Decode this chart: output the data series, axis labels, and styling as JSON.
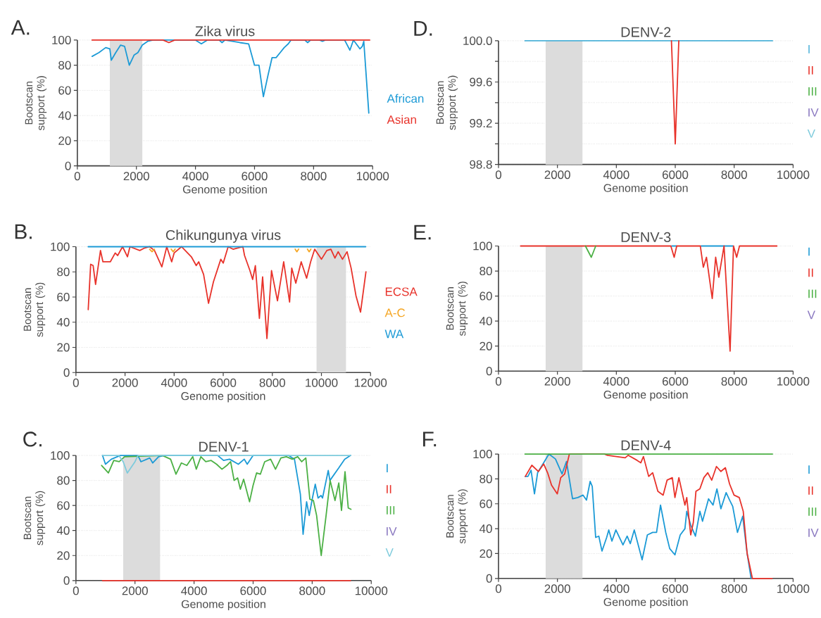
{
  "chart_data": [
    {
      "type": "line",
      "title": "Zika virus",
      "xlabel": "Genome position",
      "ylabel": "Bootscan support (%)",
      "annotations": [
        "A."
      ],
      "xlim": [
        0,
        10000
      ],
      "xticks": [
        0,
        2000,
        4000,
        6000,
        8000,
        10000
      ],
      "ylim": [
        0,
        100
      ],
      "yticks": [
        0,
        20,
        40,
        60,
        80,
        100
      ],
      "grid": "y",
      "legend": "right",
      "bands": [
        {
          "axis": "x",
          "from": 1100,
          "to": 2200,
          "color": "#dcdcdc"
        }
      ],
      "series": [
        {
          "name": "African",
          "color": "#1b9ad6",
          "x": [
            500,
            730,
            960,
            1100,
            1150,
            1300,
            1465,
            1600,
            1760,
            1920,
            2050,
            2200,
            2380,
            2560,
            4000,
            4200,
            4400,
            4800,
            4900,
            5000,
            5500,
            5800,
            6000,
            6150,
            6300,
            6456,
            6593,
            6730,
            6868,
            7005,
            7143,
            7234,
            7700,
            7800,
            7900,
            8200,
            8300,
            8400,
            9050,
            9230,
            9350,
            9570,
            9650,
            9700,
            9870
          ],
          "values": [
            87,
            90,
            94,
            93,
            84,
            90,
            96,
            95,
            80,
            88,
            90,
            96,
            99,
            100,
            100,
            97,
            100,
            100,
            98,
            100,
            98,
            97,
            80,
            80,
            55,
            72,
            86,
            86,
            90,
            94,
            97,
            100,
            100,
            98,
            100,
            100,
            99,
            100,
            100,
            92,
            100,
            93,
            95,
            99,
            42
          ]
        },
        {
          "name": "Asian",
          "color": "#e8322a",
          "x": [
            500,
            2900,
            3100,
            3300,
            9900
          ],
          "values": [
            100,
            100,
            98,
            100,
            100
          ]
        }
      ]
    },
    {
      "type": "line",
      "title": "Chikungunya virus",
      "xlabel": "Genome position",
      "ylabel": "Bootscan support (%)",
      "annotations": [
        "B."
      ],
      "xlim": [
        0,
        12000
      ],
      "xticks": [
        0,
        2000,
        4000,
        6000,
        8000,
        10000,
        12000
      ],
      "ylim": [
        0,
        100
      ],
      "yticks": [
        0,
        20,
        40,
        60,
        80,
        100
      ],
      "grid": "y",
      "legend": "right",
      "bands": [
        {
          "axis": "x",
          "from": 9800,
          "to": 11000,
          "color": "#dcdcdc"
        }
      ],
      "series": [
        {
          "name": "ECSA",
          "color": "#e8322a",
          "x": [
            500,
            600,
            700,
            800,
            1000,
            1100,
            1400,
            1600,
            1700,
            1900,
            2100,
            2200,
            2600,
            2800,
            3000,
            3200,
            3500,
            3700,
            3900,
            4000,
            4300,
            4700,
            4900,
            5000,
            5200,
            5400,
            5600,
            5900,
            6000,
            6200,
            6400,
            6800,
            6868,
            7088,
            7198,
            7308,
            7473,
            7604,
            7780,
            7967,
            8209,
            8462,
            8703,
            8791,
            8956,
            9176,
            9396,
            9560,
            9725,
            10000,
            10220,
            10385,
            10550,
            10681,
            10857,
            11044,
            11209,
            11407,
            11593,
            11813
          ],
          "values": [
            50,
            86,
            85,
            70,
            97,
            88,
            88,
            95,
            93,
            100,
            92,
            100,
            97,
            99,
            100,
            97,
            84,
            100,
            88,
            95,
            100,
            92,
            85,
            88,
            78,
            55,
            72,
            90,
            87,
            100,
            98,
            100,
            93,
            81,
            74,
            85,
            43,
            76,
            27,
            81,
            57,
            88,
            56,
            83,
            71,
            88,
            75,
            88,
            98,
            90,
            97,
            98,
            91,
            96,
            90,
            96,
            83,
            61,
            48,
            80
          ]
        },
        {
          "name": "A-C",
          "color": "#f5a623",
          "x": [
            3000,
            3100,
            3200,
            3300,
            3880,
            3960,
            4040,
            4100,
            8930,
            9000,
            9070,
            9100,
            9430,
            9500,
            9570
          ],
          "values": [
            98,
            96,
            98,
            null,
            98,
            96,
            98,
            null,
            98,
            96,
            98,
            null,
            98,
            96,
            98
          ]
        },
        {
          "name": "WA",
          "color": "#1b9ad6",
          "x": [
            500,
            11800
          ],
          "values": [
            100,
            100
          ]
        }
      ]
    },
    {
      "type": "line",
      "title": "DENV-1",
      "xlabel": "Genome position",
      "ylabel": "Bootscan support (%)",
      "annotations": [
        "C."
      ],
      "xlim": [
        0,
        10000
      ],
      "xticks": [
        0,
        2000,
        4000,
        6000,
        8000,
        10000
      ],
      "ylim": [
        0,
        100
      ],
      "yticks": [
        0,
        20,
        40,
        60,
        80,
        100
      ],
      "grid": "y",
      "legend": "right",
      "bands": [
        {
          "axis": "x",
          "from": 1600,
          "to": 2850,
          "color": "#dcdcdc"
        }
      ],
      "series": [
        {
          "name": "I",
          "color": "#1b9ad6",
          "x": [
            900,
            1000,
            1200,
            1500,
            2100,
            2200,
            2500,
            2600,
            2800,
            3000,
            4800,
            5000,
            5200,
            5500,
            5700,
            5800,
            6000,
            7200,
            7400,
            7600,
            7692,
            7811,
            7900,
            8000,
            8104,
            8200,
            8300,
            8350,
            8544,
            8600,
            8900,
            9100,
            9300
          ],
          "values": [
            100,
            93,
            97,
            100,
            100,
            95,
            98,
            94,
            99,
            100,
            100,
            96,
            97,
            93,
            97,
            93,
            100,
            100,
            97,
            69,
            37,
            63,
            52,
            65,
            77,
            66,
            68,
            66,
            88,
            80,
            90,
            97,
            100
          ]
        },
        {
          "name": "II",
          "color": "#e8322a",
          "x": [
            900,
            9300
          ],
          "values": [
            0,
            0
          ]
        },
        {
          "name": "III",
          "color": "#4bb044",
          "x": [
            870,
            1099,
            1282,
            1465,
            1648,
            2930,
            3205,
            3388,
            3571,
            3755,
            3956,
            4075,
            4231,
            4396,
            4579,
            4762,
            4945,
            5110,
            5238,
            5357,
            5476,
            5568,
            5678,
            5879,
            5998,
            6117,
            6245,
            6392,
            6593,
            6758,
            6941,
            7125,
            7326,
            7509,
            7646,
            7784,
            7921,
            8040,
            8150,
            8306,
            8471,
            8608,
            8773,
            8901,
            8993,
            9112,
            9222,
            9313
          ],
          "values": [
            92,
            86,
            96,
            95,
            99,
            100,
            97,
            85,
            94,
            92,
            99,
            89,
            99,
            95,
            96,
            93,
            89,
            92,
            95,
            80,
            82,
            73,
            81,
            63,
            76,
            86,
            85,
            95,
            97,
            89,
            98,
            99,
            97,
            99,
            95,
            98,
            65,
            64,
            52,
            20,
            52,
            80,
            64,
            78,
            56,
            87,
            58,
            57
          ]
        },
        {
          "name": "IV",
          "color": "#8a78c0",
          "values": [
            null
          ]
        },
        {
          "name": "V",
          "color": "#7ecbdc",
          "x": [
            900,
            1450,
            1600,
            1740,
            2000,
            2100,
            9300
          ],
          "values": [
            100,
            100,
            95,
            86,
            95,
            100,
            100
          ]
        }
      ]
    },
    {
      "type": "line",
      "title": "DENV-2",
      "xlabel": "Genome position",
      "ylabel": "Bootscan support (%)",
      "annotations": [
        "D."
      ],
      "xlim": [
        0,
        10000
      ],
      "xticks": [
        0,
        2000,
        4000,
        6000,
        8000,
        10000
      ],
      "ylim": [
        98.8,
        100
      ],
      "yticks": [
        98.8,
        {
          "value": 99.0,
          "label": null
        },
        99.2,
        {
          "value": 99.4,
          "label": null
        },
        99.6,
        {
          "value": 99.8,
          "label": null
        },
        {
          "value": 100,
          "label": "100.0"
        }
      ],
      "grid": "y",
      "legend": "right",
      "bands": [
        {
          "axis": "x",
          "from": 1600,
          "to": 2850,
          "color": "#dcdcdc"
        }
      ],
      "series": [
        {
          "name": "I",
          "color": "#4fb3d9",
          "x": [
            900,
            9300
          ],
          "values": [
            100,
            100
          ]
        },
        {
          "name": "II",
          "color": "#e8322a",
          "x": [
            5870,
            6000,
            6120
          ],
          "values": [
            100,
            99.0,
            100
          ]
        },
        {
          "name": "III",
          "color": "#4bb044",
          "values": [
            null
          ]
        },
        {
          "name": "IV",
          "color": "#8a78c0",
          "values": [
            null
          ]
        },
        {
          "name": "V",
          "color": "#7ecbdc",
          "values": [
            null
          ]
        }
      ]
    },
    {
      "type": "line",
      "title": "DENV-3",
      "xlabel": "Genome position",
      "ylabel": "Bootscan support (%)",
      "annotations": [
        "E."
      ],
      "xlim": [
        0,
        10000
      ],
      "xticks": [
        0,
        2000,
        4000,
        6000,
        8000,
        10000
      ],
      "ylim": [
        0,
        100
      ],
      "yticks": [
        0,
        20,
        40,
        60,
        80,
        100
      ],
      "grid": "y",
      "legend": "right",
      "bands": [
        {
          "axis": "x",
          "from": 1600,
          "to": 2850,
          "color": "#dcdcdc"
        }
      ],
      "series": [
        {
          "name": "I",
          "color": "#1b9ad6",
          "x": [
            5880,
            6040,
            6045,
            6880,
            7950
          ],
          "values": [
            100,
            100,
            null,
            100,
            100
          ]
        },
        {
          "name": "II",
          "color": "#e8322a",
          "x": [
            750,
            5850,
            5963,
            6050,
            6850,
            6952,
            7059,
            7255,
            7371,
            7478,
            7656,
            7861,
            7977,
            8084,
            8180,
            9450
          ],
          "values": [
            100,
            100,
            91,
            100,
            100,
            83,
            91,
            58,
            91,
            75,
            100,
            16,
            100,
            91,
            100,
            100
          ]
        },
        {
          "name": "III",
          "color": "#4bb044",
          "x": [
            2950,
            3150,
            3300
          ],
          "values": [
            100,
            91,
            100
          ]
        },
        {
          "name": "V",
          "color": "#8a78c0",
          "values": [
            null
          ]
        }
      ]
    },
    {
      "type": "line",
      "title": "DENV-4",
      "xlabel": "Genome position",
      "ylabel": "Bootscan support (%)",
      "annotations": [
        "F."
      ],
      "xlim": [
        0,
        10000
      ],
      "xticks": [
        0,
        2000,
        4000,
        6000,
        8000,
        10000
      ],
      "ylim": [
        0,
        100
      ],
      "yticks": [
        0,
        20,
        40,
        60,
        80,
        100
      ],
      "grid": "y",
      "legend": "right",
      "bands": [
        {
          "axis": "x",
          "from": 1600,
          "to": 2850,
          "color": "#dcdcdc"
        }
      ],
      "series": [
        {
          "name": "I",
          "color": "#1b9ad6",
          "x": [
            909,
            998,
            1105,
            1221,
            1328,
            1533,
            1711,
            1934,
            2157,
            2308,
            2513,
            2692,
            2870,
            2986,
            3111,
            3182,
            3298,
            3405,
            3512,
            3672,
            3743,
            3850,
            3984,
            4225,
            4367,
            4474,
            4608,
            4875,
            5053,
            5232,
            5365,
            5499,
            5677,
            5811,
            5989,
            6168,
            6328,
            6390,
            6524,
            6684,
            6836,
            6925,
            7130,
            7282,
            7415,
            7549,
            7727,
            7843,
            7950,
            8111,
            8289,
            8440,
            8575
          ],
          "values": [
            82,
            82,
            87,
            68,
            85,
            93,
            100,
            96,
            84,
            94,
            64,
            65,
            67,
            63,
            78,
            74,
            33,
            34,
            22,
            33,
            39,
            30,
            39,
            27,
            34,
            28,
            39,
            15,
            35,
            37,
            37,
            59,
            37,
            24,
            19,
            35,
            40,
            54,
            43,
            34,
            54,
            46,
            64,
            59,
            72,
            56,
            69,
            63,
            58,
            37,
            50,
            20,
            0
          ]
        },
        {
          "name": "II",
          "color": "#e8322a",
          "x": [
            909,
            1132,
            1355,
            1533,
            1666,
            1800,
            1996,
            2112,
            2246,
            2406,
            3600,
            3700,
            4300,
            4400,
            4700,
            4831,
            4920,
            5098,
            5232,
            5410,
            5588,
            5722,
            5900,
            5989,
            6123,
            6328,
            6390,
            6524,
            6613,
            6702,
            6836,
            6970,
            7103,
            7237,
            7398,
            7549,
            7701,
            7843,
            7995,
            8173,
            8307,
            8440,
            8619,
            9287
          ],
          "values": [
            82,
            91,
            86,
            92,
            85,
            75,
            68,
            81,
            84,
            100,
            100,
            99,
            97,
            99,
            95,
            93,
            98,
            82,
            85,
            70,
            67,
            79,
            81,
            65,
            81,
            59,
            65,
            35,
            45,
            70,
            72,
            81,
            85,
            79,
            90,
            86,
            89,
            76,
            67,
            65,
            54,
            20,
            0,
            0
          ]
        },
        {
          "name": "III",
          "color": "#4bb044",
          "x": [
            900,
            9300
          ],
          "values": [
            100,
            100
          ]
        },
        {
          "name": "IV",
          "color": "#8a78c0",
          "values": [
            null
          ]
        }
      ]
    }
  ]
}
